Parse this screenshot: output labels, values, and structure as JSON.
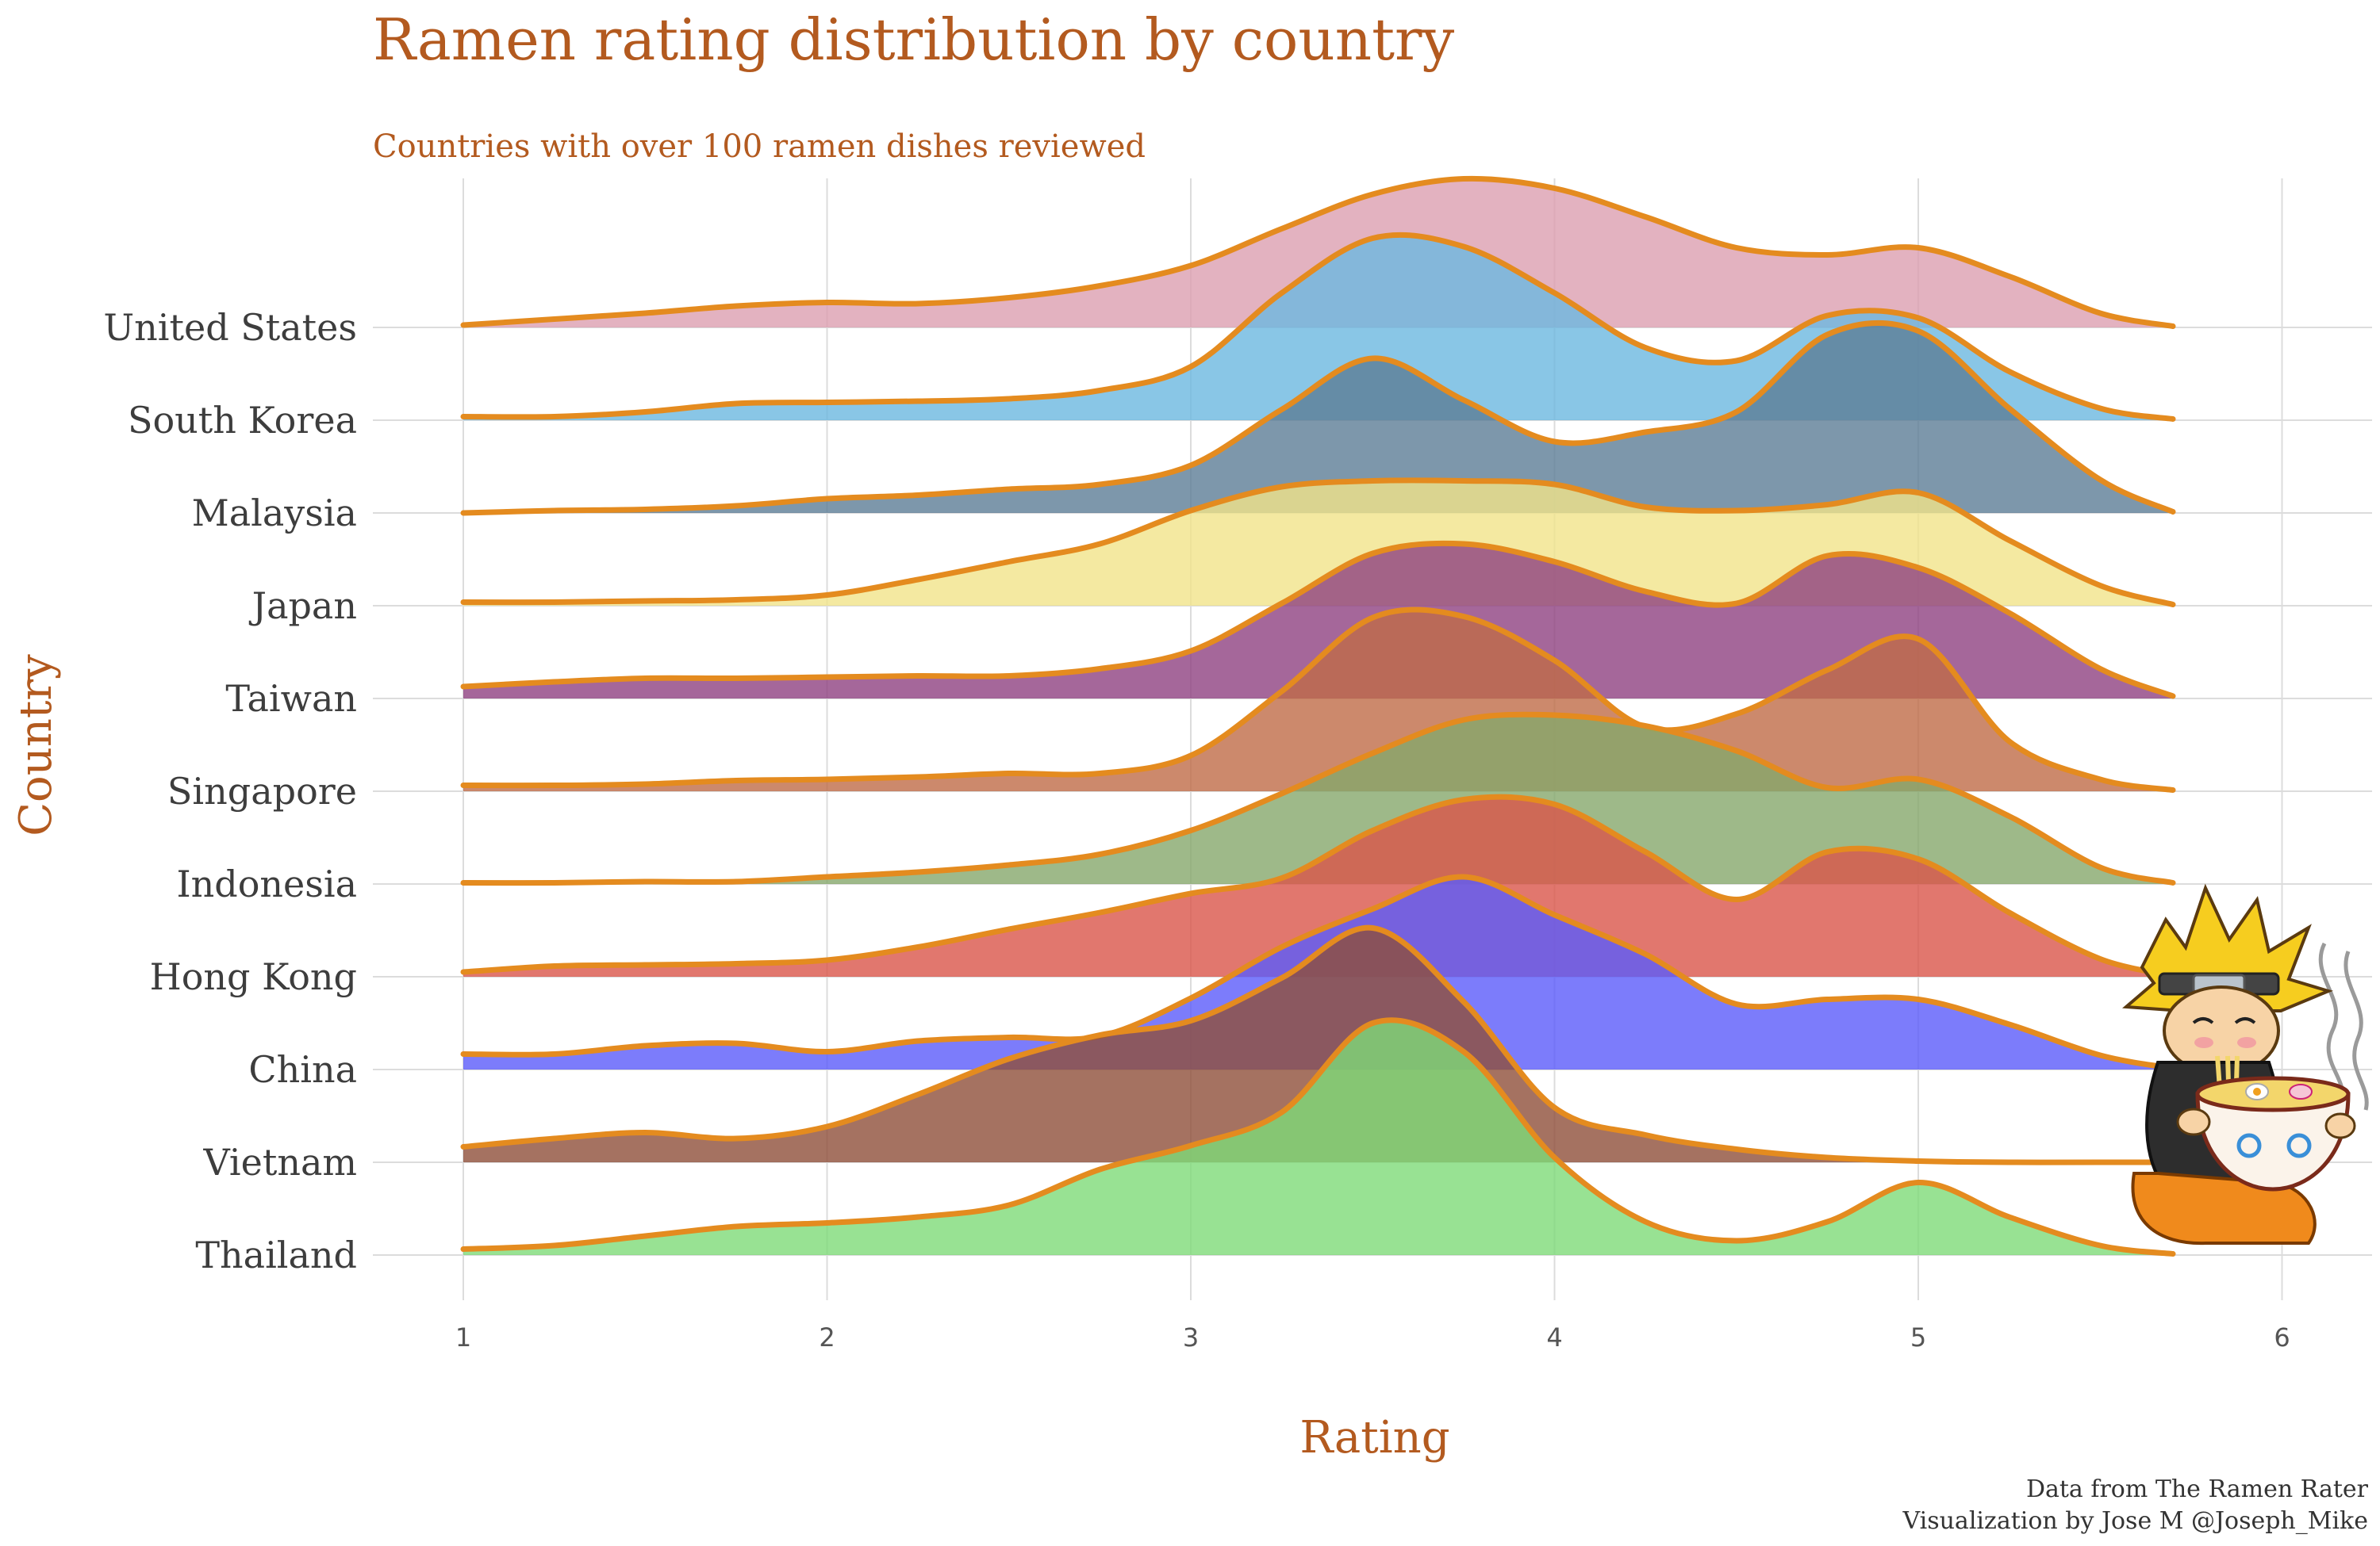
{
  "chart_data": {
    "type": "ridgeline",
    "title": "Ramen rating distribution by country",
    "subtitle": "Countries with over 100 ramen dishes reviewed",
    "xlabel": "Rating",
    "ylabel": "Country",
    "caption_line1": "Data from The Ramen Rater",
    "caption_line2": "Visualization by Jose M @Joseph_Mike",
    "xlim": [
      0.75,
      6.25
    ],
    "x_ticks": [
      "1",
      "2",
      "3",
      "4",
      "5",
      "6"
    ],
    "grid": true,
    "legend": "none",
    "outline_color": "#e48b1f",
    "x": [
      1.0,
      1.25,
      1.5,
      1.75,
      2.0,
      2.25,
      2.5,
      2.75,
      3.0,
      3.25,
      3.5,
      3.75,
      4.0,
      4.25,
      4.5,
      4.75,
      5.0,
      5.25,
      5.5,
      5.7
    ],
    "series": [
      {
        "name": "United States",
        "color": "#dc9fb0",
        "values": [
          0.02,
          0.07,
          0.12,
          0.18,
          0.21,
          0.2,
          0.25,
          0.35,
          0.52,
          0.83,
          1.12,
          1.25,
          1.17,
          0.93,
          0.67,
          0.61,
          0.67,
          0.43,
          0.12,
          0.01
        ]
      },
      {
        "name": "South Korea",
        "color": "#6cb8e0",
        "values": [
          0.03,
          0.03,
          0.07,
          0.14,
          0.15,
          0.16,
          0.18,
          0.25,
          0.45,
          1.07,
          1.53,
          1.46,
          1.07,
          0.61,
          0.5,
          0.88,
          0.86,
          0.41,
          0.1,
          0.01
        ]
      },
      {
        "name": "Malaysia",
        "color": "#5c7d96",
        "values": [
          0.0,
          0.02,
          0.03,
          0.06,
          0.12,
          0.15,
          0.2,
          0.24,
          0.4,
          0.87,
          1.3,
          0.95,
          0.6,
          0.68,
          0.85,
          1.5,
          1.53,
          0.88,
          0.28,
          0.01
        ]
      },
      {
        "name": "Japan",
        "color": "#f1e38a",
        "values": [
          0.03,
          0.03,
          0.04,
          0.05,
          0.09,
          0.22,
          0.37,
          0.52,
          0.8,
          1.0,
          1.05,
          1.05,
          1.02,
          0.83,
          0.8,
          0.85,
          0.95,
          0.55,
          0.17,
          0.01
        ]
      },
      {
        "name": "Taiwan",
        "color": "#8e4181",
        "values": [
          0.1,
          0.14,
          0.17,
          0.17,
          0.18,
          0.19,
          0.19,
          0.25,
          0.4,
          0.8,
          1.22,
          1.3,
          1.15,
          0.9,
          0.8,
          1.2,
          1.1,
          0.72,
          0.25,
          0.02
        ]
      },
      {
        "name": "Singapore",
        "color": "#bf6c47",
        "values": [
          0.05,
          0.05,
          0.06,
          0.09,
          0.1,
          0.12,
          0.15,
          0.15,
          0.3,
          0.84,
          1.46,
          1.47,
          1.1,
          0.54,
          0.65,
          1.02,
          1.28,
          0.42,
          0.1,
          0.01
        ]
      },
      {
        "name": "Indonesia",
        "color": "#86a86c",
        "values": [
          0.01,
          0.01,
          0.02,
          0.02,
          0.06,
          0.1,
          0.16,
          0.25,
          0.45,
          0.76,
          1.1,
          1.38,
          1.42,
          1.33,
          1.12,
          0.81,
          0.88,
          0.57,
          0.14,
          0.01
        ]
      },
      {
        "name": "Hong Kong",
        "color": "#d9554a",
        "values": [
          0.04,
          0.09,
          0.1,
          0.11,
          0.14,
          0.25,
          0.4,
          0.54,
          0.7,
          0.83,
          1.23,
          1.49,
          1.45,
          1.05,
          0.65,
          1.05,
          0.99,
          0.54,
          0.15,
          0.01
        ]
      },
      {
        "name": "China",
        "color": "#5b5bfa",
        "values": [
          0.13,
          0.13,
          0.2,
          0.22,
          0.15,
          0.24,
          0.27,
          0.28,
          0.6,
          1.03,
          1.35,
          1.62,
          1.3,
          0.97,
          0.55,
          0.59,
          0.59,
          0.38,
          0.12,
          0.01
        ]
      },
      {
        "name": "Vietnam",
        "color": "#8f4f3a",
        "values": [
          0.13,
          0.2,
          0.25,
          0.2,
          0.3,
          0.57,
          0.87,
          1.07,
          1.19,
          1.55,
          1.97,
          1.35,
          0.46,
          0.23,
          0.11,
          0.04,
          0.01,
          0.0,
          0.0,
          0.0
        ]
      },
      {
        "name": "Thailand",
        "color": "#7edb78",
        "values": [
          0.05,
          0.08,
          0.16,
          0.24,
          0.27,
          0.32,
          0.42,
          0.72,
          0.92,
          1.2,
          1.95,
          1.71,
          0.82,
          0.28,
          0.12,
          0.28,
          0.61,
          0.32,
          0.08,
          0.01
        ]
      }
    ]
  },
  "mascot": {
    "icon": "ramen-eating-boy-icon"
  }
}
